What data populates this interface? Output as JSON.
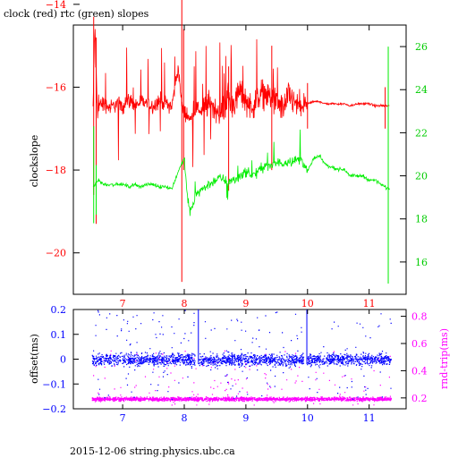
{
  "chart_data": [
    {
      "type": "line",
      "title": "clock (red) rtc (green) slopes",
      "xlabel": "",
      "ylabel": "clockslope",
      "xlim": [
        6.2,
        11.6
      ],
      "ylim": [
        -21.0,
        -14.5
      ],
      "y2lim": [
        14.5,
        27.0
      ],
      "x_ticks": [
        7,
        8,
        9,
        10,
        11
      ],
      "y_ticks": [
        -14,
        -16,
        -18,
        -20
      ],
      "y2_ticks": [
        26,
        24,
        22,
        20,
        18,
        16
      ],
      "grid": false,
      "series": [
        {
          "color": "#ff0000",
          "axis": "left",
          "x": [
            6.52,
            6.55,
            6.58,
            6.62,
            6.7,
            6.8,
            6.9,
            7.0,
            7.1,
            7.2,
            7.3,
            7.4,
            7.5,
            7.6,
            7.7,
            7.8,
            7.9,
            7.95,
            7.98,
            8.02,
            8.1,
            8.2,
            8.3,
            8.4,
            8.5,
            8.6,
            8.7,
            8.8,
            8.9,
            9.0,
            9.1,
            9.2,
            9.3,
            9.4,
            9.5,
            9.6,
            9.7,
            9.8,
            9.9,
            10.0,
            10.1,
            10.2,
            10.3,
            10.4,
            10.5,
            10.6,
            10.7,
            10.8,
            10.9,
            11.0,
            11.1,
            11.2,
            11.3,
            11.33
          ],
          "y": [
            -16.5,
            -14.5,
            -16.3,
            -16.4,
            -16.4,
            -16.5,
            -16.4,
            -16.45,
            -16.3,
            -16.45,
            -16.35,
            -16.4,
            -16.45,
            -16.3,
            -16.4,
            -16.45,
            -15.5,
            -16.3,
            -16.6,
            -16.6,
            -16.8,
            -16.5,
            -16.6,
            -16.4,
            -16.5,
            -16.6,
            -16.3,
            -16.4,
            -16.1,
            -16.3,
            -16.5,
            -16.2,
            -16.1,
            -16.3,
            -16.4,
            -16.5,
            -16.2,
            -16.4,
            -16.5,
            -16.4,
            -16.35,
            -16.35,
            -16.4,
            -16.4,
            -16.4,
            -16.4,
            -16.45,
            -16.4,
            -16.4,
            -16.4,
            -16.45,
            -16.45,
            -16.45,
            -16.45
          ]
        },
        {
          "color": "#00ee00",
          "axis": "right",
          "x": [
            6.52,
            6.6,
            6.7,
            6.8,
            6.9,
            7.0,
            7.1,
            7.2,
            7.3,
            7.4,
            7.5,
            7.6,
            7.7,
            7.8,
            7.9,
            8.0,
            8.05,
            8.1,
            8.2,
            8.3,
            8.4,
            8.5,
            8.6,
            8.7,
            8.8,
            8.9,
            9.0,
            9.1,
            9.2,
            9.3,
            9.4,
            9.5,
            9.6,
            9.7,
            9.8,
            9.9,
            10.0,
            10.1,
            10.2,
            10.3,
            10.4,
            10.5,
            10.6,
            10.7,
            10.8,
            10.9,
            11.0,
            11.1,
            11.2,
            11.3,
            11.33
          ],
          "y": [
            19.5,
            19.8,
            19.6,
            19.6,
            19.6,
            19.6,
            19.5,
            19.6,
            19.5,
            19.6,
            19.6,
            19.5,
            19.5,
            19.4,
            20.2,
            20.8,
            19.0,
            18.3,
            19.2,
            19.4,
            19.6,
            19.8,
            19.9,
            19.7,
            19.8,
            20.0,
            20.2,
            20.0,
            20.2,
            20.5,
            20.4,
            20.6,
            20.6,
            20.7,
            20.7,
            20.8,
            20.2,
            20.8,
            20.9,
            20.5,
            20.4,
            20.3,
            20.3,
            20.0,
            20.0,
            20.0,
            19.8,
            19.8,
            19.6,
            19.4,
            19.4
          ]
        }
      ]
    },
    {
      "type": "scatter",
      "title": "",
      "xlabel": "",
      "ylabel": "offset(ms)",
      "y2label": "rnd-trip(ms)",
      "xlim": [
        6.2,
        11.6
      ],
      "ylim": [
        -0.2,
        0.2
      ],
      "y2lim": [
        0.12,
        0.85
      ],
      "x_ticks": [
        7,
        8,
        9,
        10,
        11
      ],
      "y_ticks": [
        0.2,
        0.1,
        0,
        -0.1,
        -0.2
      ],
      "y_tick_labels": [
        "0.2",
        "0.1",
        "0",
        "−0.1",
        "−0.2"
      ],
      "y2_ticks": [
        0.8,
        0.6,
        0.4,
        0.2
      ],
      "grid": false,
      "series": [
        {
          "color": "#0000ff",
          "axis": "left",
          "x_range": [
            6.5,
            11.35
          ],
          "band_center": 0.0,
          "band_halfwidth": 0.035,
          "outlier_range": [
            -0.16,
            0.2
          ],
          "gaps": [
            8.2,
            9.96
          ]
        },
        {
          "color": "#ff00ff",
          "axis": "right",
          "x_range": [
            6.5,
            11.35
          ],
          "band_center": 0.195,
          "band_halfwidth": 0.02,
          "outlier_range": [
            0.15,
            0.55
          ]
        }
      ]
    }
  ],
  "footer": "2015-12-06 string.physics.ubc.ca"
}
